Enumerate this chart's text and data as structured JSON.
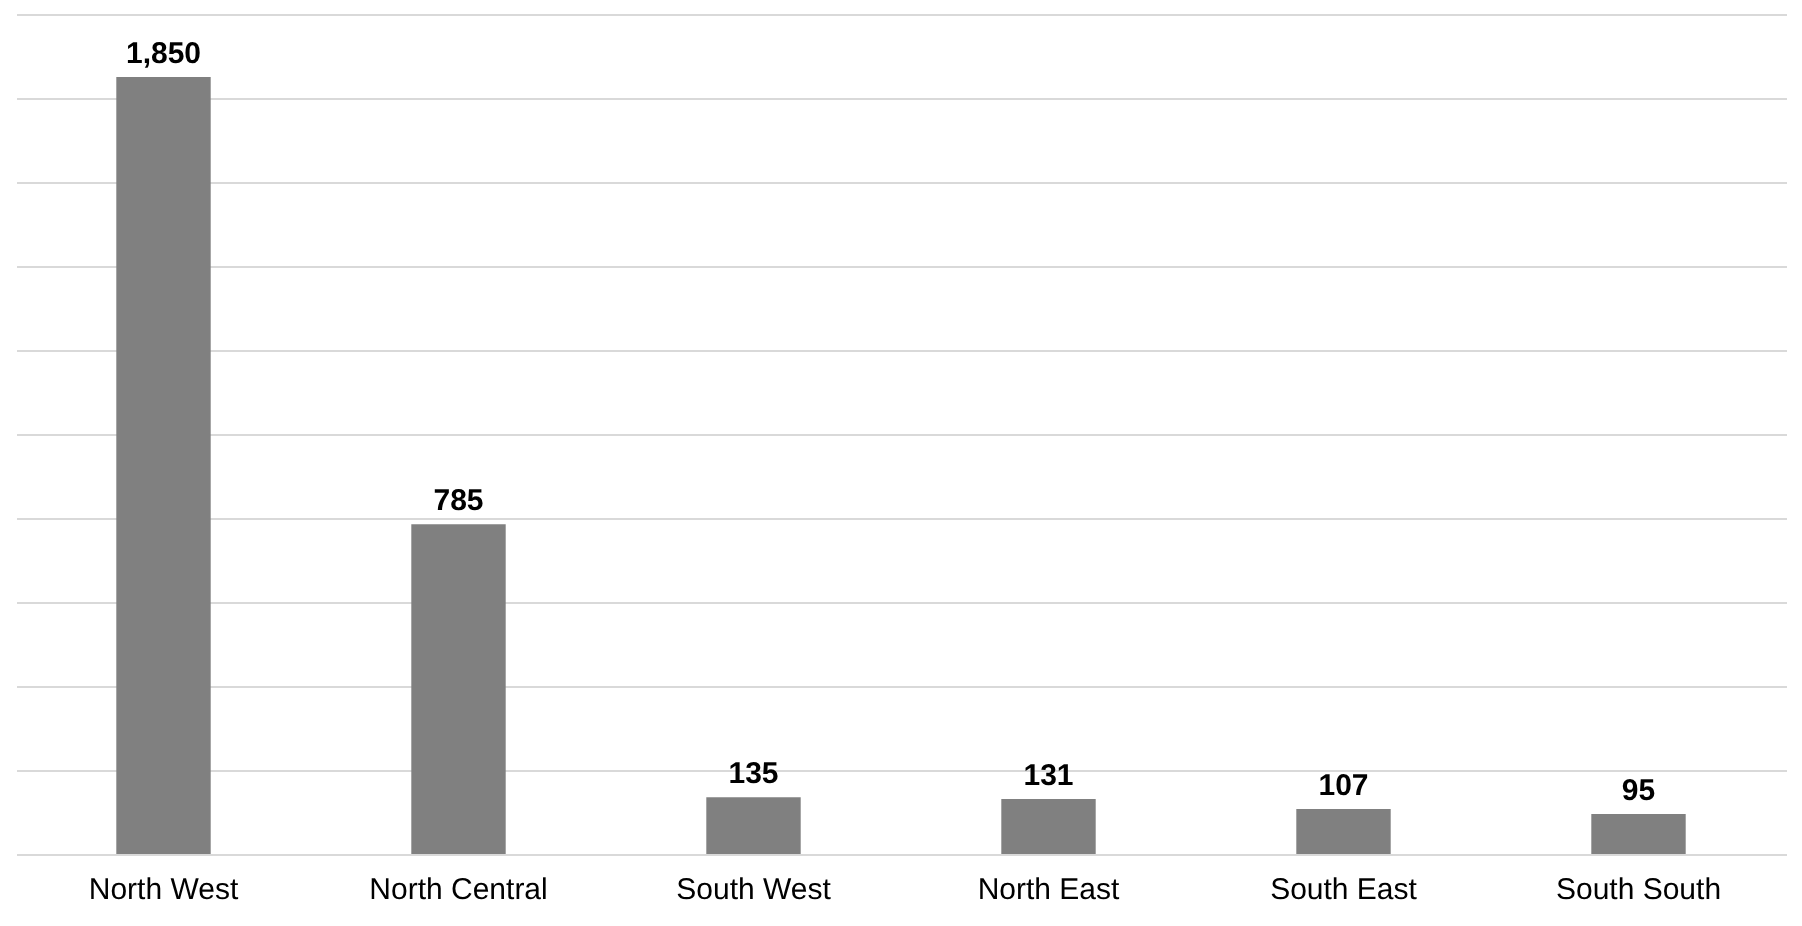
{
  "chart_data": {
    "type": "bar",
    "categories": [
      "North West",
      "North Central",
      "South West",
      "North East",
      "South East",
      "South South"
    ],
    "values": [
      1850,
      785,
      135,
      131,
      107,
      95
    ],
    "color": "#808080",
    "ylim": [
      0,
      2000
    ],
    "yticks": [
      {
        "value": 0,
        "label": null
      },
      {
        "value": 200,
        "label": null
      },
      {
        "value": 400,
        "label": null
      },
      {
        "value": 600,
        "label": null
      },
      {
        "value": 800,
        "label": null
      },
      {
        "value": 1000,
        "label": null
      },
      {
        "value": 1200,
        "label": null
      },
      {
        "value": 1400,
        "label": null
      },
      {
        "value": 1600,
        "label": null
      },
      {
        "value": 1800,
        "label": null
      },
      {
        "value": 2000,
        "label": null
      }
    ],
    "grid": "y",
    "tick_labels": "x",
    "value_labels": [
      "1,850",
      "785",
      "135",
      "131",
      "107",
      "95"
    ]
  }
}
